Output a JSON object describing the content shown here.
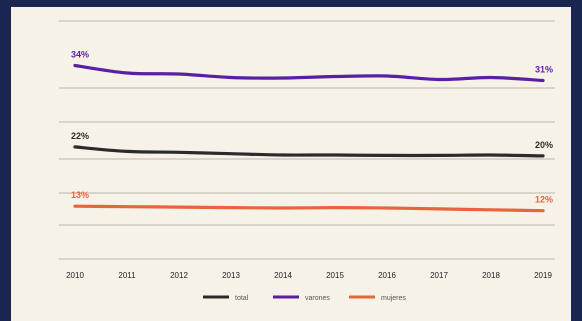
{
  "chart_data": {
    "type": "line",
    "categories": [
      "2010",
      "2011",
      "2012",
      "2013",
      "2014",
      "2015",
      "2016",
      "2017",
      "2018",
      "2019"
    ],
    "series": [
      {
        "name": "varones",
        "color": "#5a1fa3",
        "values": [
          34,
          32.5,
          32.3,
          31.6,
          31.5,
          31.8,
          31.9,
          31.2,
          31.6,
          31
        ],
        "start_label": "34%",
        "end_label": "31%"
      },
      {
        "name": "total",
        "color": "#2b2b2b",
        "values": [
          22,
          21,
          20.8,
          20.5,
          20.2,
          20.2,
          20.1,
          20.1,
          20.2,
          20
        ],
        "start_label": "22%",
        "end_label": "20%"
      },
      {
        "name": "mujeres",
        "color": "#e8643f",
        "values": [
          13,
          12.9,
          12.8,
          12.7,
          12.6,
          12.7,
          12.6,
          12.4,
          12.2,
          12
        ],
        "start_label": "13%",
        "end_label": "12%"
      }
    ],
    "grid": true,
    "legend_position": "bottom-center"
  }
}
